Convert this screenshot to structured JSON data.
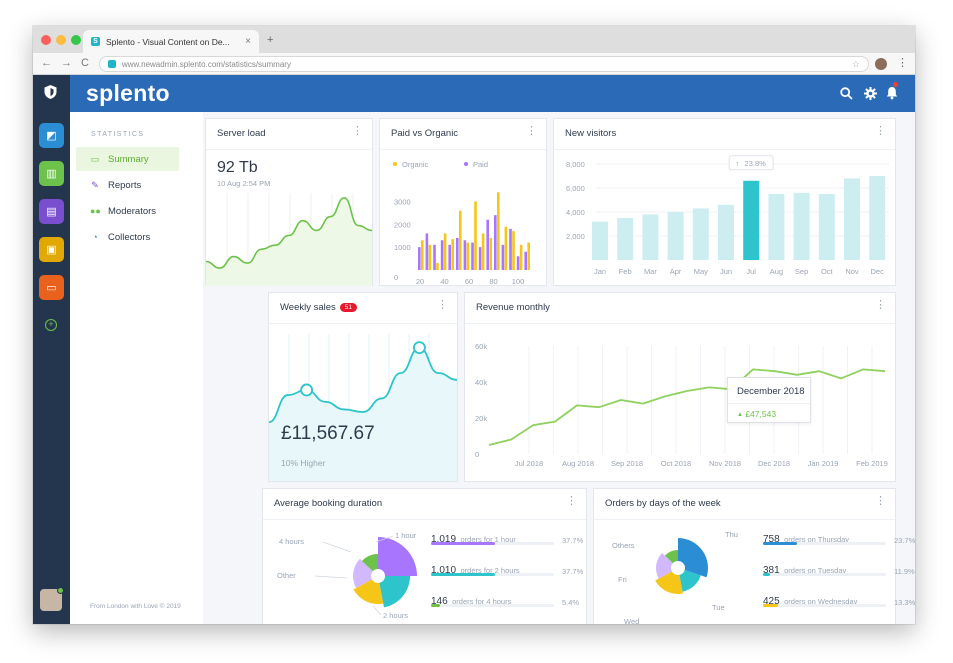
{
  "browser": {
    "tab_title": "Splento - Visual Content on De...",
    "tab_close": "×",
    "new_tab": "+",
    "favicon": "S",
    "url": "www.newadmin.splento.com/statistics/summary",
    "nav_back": "←",
    "nav_forward": "→",
    "nav_reload": "C",
    "star": "☆",
    "menu": "⋮"
  },
  "app": {
    "brand": "splento",
    "colors": {
      "header": "#2b6ab6",
      "rail": "#24364e",
      "green": "#6cc24a",
      "teal": "#2ec4cc",
      "purple": "#a875ff",
      "orange": "#f5c518"
    }
  },
  "rail": {
    "items": [
      {
        "name": "rail-dashboard-button",
        "icon": "dashboard-icon",
        "glyph": "◩",
        "color": "#2b8ed4"
      },
      {
        "name": "rail-statistics-button",
        "icon": "chart-icon",
        "glyph": "▥",
        "color": "#6cc24a"
      },
      {
        "name": "rail-documents-button",
        "icon": "document-icon",
        "glyph": "▤",
        "color": "#7a4fcf"
      },
      {
        "name": "rail-contacts-button",
        "icon": "contact-icon",
        "glyph": "▣",
        "color": "#e0a800"
      },
      {
        "name": "rail-tickets-button",
        "icon": "ticket-icon",
        "glyph": "▭",
        "color": "#e8621e"
      }
    ],
    "add_glyph": "+"
  },
  "sidebar": {
    "heading": "STATISTICS",
    "items": [
      {
        "label": "Summary",
        "icon": "monitor-icon",
        "glyph": "▭",
        "color": "#6cc24a",
        "active": true
      },
      {
        "label": "Reports",
        "icon": "pencil-icon",
        "glyph": "✎",
        "color": "#7a4fcf",
        "active": false
      },
      {
        "label": "Moderators",
        "icon": "users-icon",
        "glyph": "●●",
        "color": "#6cc24a",
        "active": false
      },
      {
        "label": "Collectors",
        "icon": "collectors-icon",
        "glyph": "◔",
        "color": "#2b8ed4",
        "active": false
      }
    ],
    "footer": "From London with Love © 2019"
  },
  "server_load": {
    "title": "Server load",
    "value": "92 Tb",
    "timestamp": "10 Aug 2:54 PM",
    "series": [
      30,
      22,
      36,
      28,
      45,
      50,
      62,
      80,
      68,
      85,
      108,
      74,
      68
    ]
  },
  "paid_vs_organic": {
    "title": "Paid vs Organic",
    "legend": [
      "Organic",
      "Paid"
    ],
    "y_ticks": [
      "3000",
      "2000",
      "1000",
      "0"
    ],
    "x_ticks": [
      "20",
      "40",
      "60",
      "80",
      "100"
    ],
    "organic": [
      1300,
      1100,
      300,
      1600,
      1350,
      2600,
      1200,
      3000,
      1600,
      1400,
      3400,
      1900,
      1700,
      1100,
      1200
    ],
    "paid": [
      1000,
      1600,
      1100,
      1300,
      1100,
      1400,
      1300,
      1200,
      1000,
      2200,
      2400,
      1100,
      1800,
      600,
      800
    ],
    "ylim": [
      0,
      3500
    ]
  },
  "new_visitors": {
    "title": "New visitors",
    "y_ticks": [
      "8,000",
      "6,000",
      "4,000",
      "2,000"
    ],
    "categories": [
      "Jan",
      "Feb",
      "Mar",
      "Apr",
      "May",
      "Jun",
      "Jul",
      "Aug",
      "Sep",
      "Oct",
      "Nov",
      "Dec"
    ],
    "values": [
      3200,
      3500,
      3800,
      4000,
      4300,
      4600,
      6600,
      5500,
      5600,
      5500,
      6800,
      7000
    ],
    "highlight_index": 6,
    "tooltip": "23.8%",
    "tooltip_icon": "↑",
    "ylim": [
      0,
      8500
    ]
  },
  "weekly_sales": {
    "title": "Weekly sales",
    "badge": "51",
    "value": "£11,567.67",
    "subtitle": "10% Higher",
    "series": [
      40,
      72,
      78,
      64,
      55,
      52,
      68,
      98,
      128,
      98,
      90
    ]
  },
  "revenue": {
    "title": "Revenue monthly",
    "y_ticks": [
      "60k",
      "40k",
      "20k",
      "0"
    ],
    "x_ticks": [
      "Jul 2018",
      "Aug 2018",
      "Sep 2018",
      "Oct 2018",
      "Nov 2018",
      "Dec 2018",
      "Jan 2019",
      "Feb 2019"
    ],
    "series": [
      5000,
      8000,
      16000,
      18000,
      27000,
      26000,
      30000,
      28000,
      32000,
      35000,
      37000,
      36000,
      47000,
      46000,
      44000,
      46000,
      42000,
      47000,
      46000
    ],
    "ylim": [
      0,
      60000
    ],
    "tooltip_title": "December 2018",
    "tooltip_value": "£47,543",
    "tooltip_icon": "▲"
  },
  "booking": {
    "title": "Average booking duration",
    "labels": [
      "4 hours",
      "1 hour",
      "Other",
      "2 hours"
    ],
    "rows": [
      {
        "count": "1,019",
        "text": "orders for 1 hour",
        "pct": "37.7%",
        "value": 0.52,
        "color": "#a875ff"
      },
      {
        "count": "1,010",
        "text": "orders for 2 hours",
        "pct": "37.7%",
        "value": 0.52,
        "color": "#2ec4cc"
      },
      {
        "count": "146",
        "text": "orders for 4 hours",
        "pct": "5.4%",
        "value": 0.07,
        "color": "#6cc24a"
      }
    ]
  },
  "orders_week": {
    "title": "Orders by days of the week",
    "labels": [
      "Others",
      "Thu",
      "Fri",
      "Tue",
      "Wed"
    ],
    "rows": [
      {
        "count": "758",
        "text": "orders on Thursday",
        "pct": "23.7%",
        "value": 0.28,
        "color": "#2b8ed4"
      },
      {
        "count": "381",
        "text": "orders on Tuesday",
        "pct": "11.9%",
        "value": 0.06,
        "color": "#2ec4cc"
      },
      {
        "count": "425",
        "text": "orders on Wednesday",
        "pct": "13.3%",
        "value": 0.12,
        "color": "#f5c518"
      }
    ]
  }
}
